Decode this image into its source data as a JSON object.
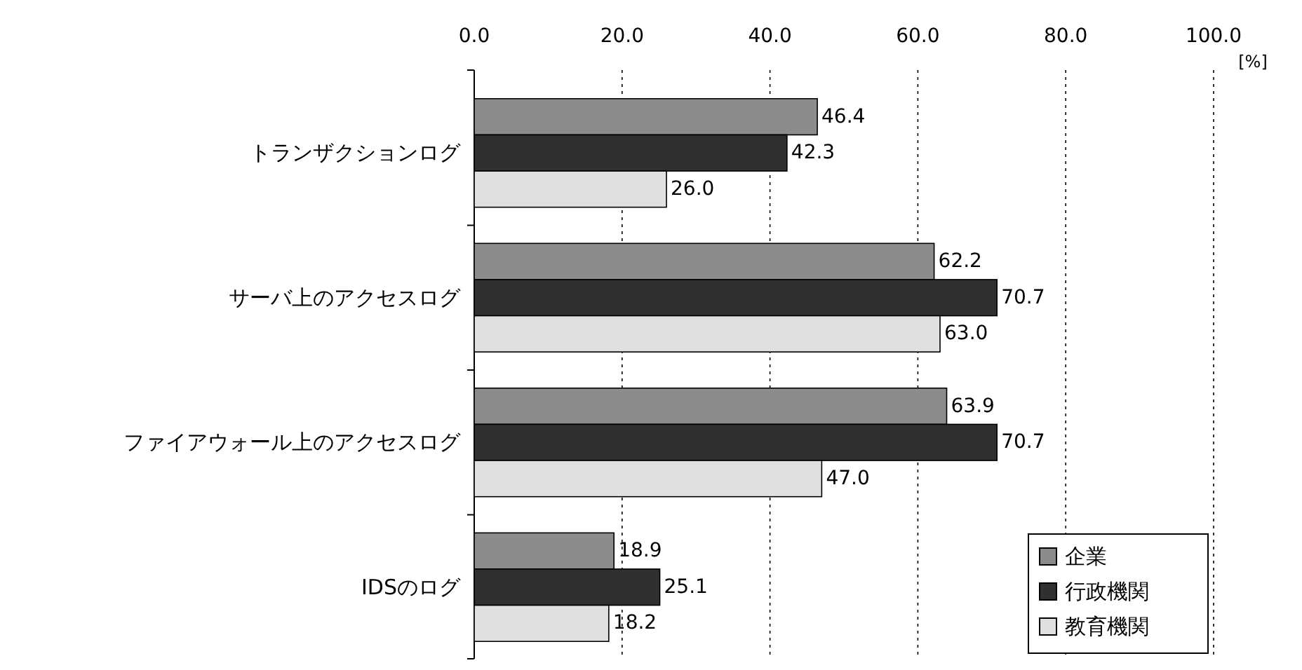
{
  "chart_data": {
    "type": "bar",
    "orientation": "horizontal",
    "categories": [
      "トランザクションログ",
      "サーバ上のアクセスログ",
      "ファイアウォール上のアクセスログ",
      "IDSのログ"
    ],
    "series": [
      {
        "name": "企業",
        "color": "#8c8c8c",
        "values": [
          46.4,
          62.2,
          63.9,
          18.9
        ],
        "value_labels": [
          "46.4",
          "62.2",
          "63.9",
          "18.9"
        ]
      },
      {
        "name": "行政機関",
        "color": "#303030",
        "values": [
          42.3,
          70.7,
          70.7,
          25.1
        ],
        "value_labels": [
          "42.3",
          "70.7",
          "70.7",
          "25.1"
        ]
      },
      {
        "name": "教育機関",
        "color": "#e0e0e0",
        "values": [
          26.0,
          63.0,
          47.0,
          18.2
        ],
        "value_labels": [
          "26.0",
          "63.0",
          "47.0",
          "18.2"
        ]
      }
    ],
    "xlim": [
      0,
      100
    ],
    "xticks": [
      {
        "value": 0,
        "label": "0.0"
      },
      {
        "value": 20,
        "label": "20.0"
      },
      {
        "value": 40,
        "label": "40.0"
      },
      {
        "value": 60,
        "label": "60.0"
      },
      {
        "value": 80,
        "label": "80.0"
      },
      {
        "value": 100,
        "label": "100.0"
      }
    ],
    "xlabel": "[%]",
    "grid": "x",
    "legend": "bottom right"
  }
}
